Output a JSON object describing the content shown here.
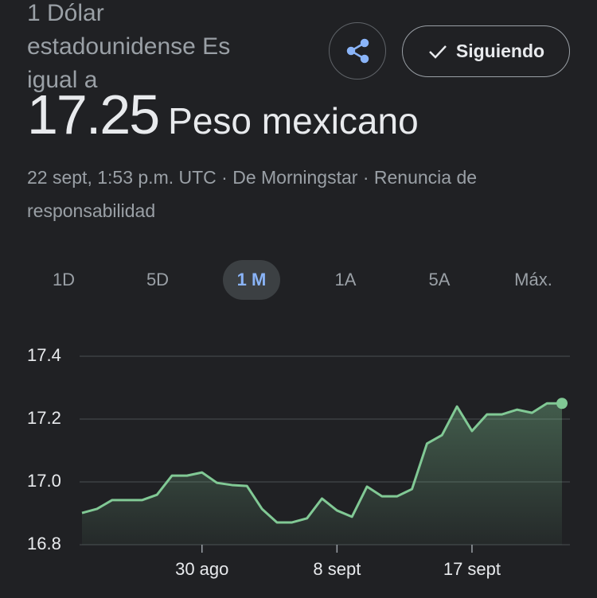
{
  "header": {
    "from_text": "1 Dólar estadounidense Es igual a",
    "value": "17.25",
    "unit": "Peso mexicano",
    "source_line": "22 sept, 1:53 p.m. UTC · De Morningstar · Renuncia de responsabilidad",
    "follow_button": "Siguiendo"
  },
  "tabs": [
    "1D",
    "5D",
    "1 M",
    "1A",
    "5A",
    "Máx."
  ],
  "selected_tab": 2,
  "chart_data": {
    "type": "line",
    "categories": [
      null,
      null,
      null,
      null,
      null,
      null,
      null,
      null,
      "30 ago",
      null,
      null,
      null,
      null,
      null,
      null,
      null,
      null,
      "8 sept",
      null,
      null,
      null,
      null,
      null,
      null,
      null,
      null,
      "17 sept",
      null,
      null,
      null,
      null,
      null,
      null
    ],
    "series": [
      {
        "color": "#81c995",
        "values": [
          16.901,
          16.914,
          16.942,
          16.942,
          16.942,
          16.959,
          17.02,
          17.02,
          17.03,
          16.997,
          16.99,
          16.987,
          16.914,
          16.871,
          16.871,
          16.884,
          16.947,
          16.909,
          16.889,
          16.985,
          16.954,
          16.954,
          16.977,
          17.122,
          17.149,
          17.24,
          17.162,
          17.215,
          17.215,
          17.23,
          17.22,
          17.25,
          17.25
        ]
      }
    ],
    "ylim": [
      16.8,
      17.4
    ],
    "yticks": [
      17.4,
      17.2,
      {
        "value": 17,
        "label": "17.0"
      },
      16.8
    ],
    "grid": true
  }
}
